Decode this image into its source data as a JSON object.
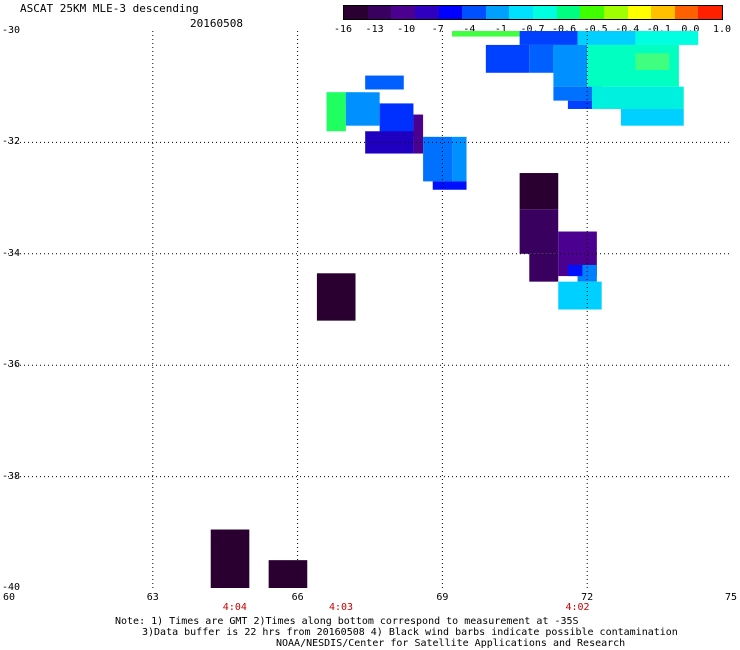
{
  "header": {
    "title": "ASCAT 25KM MLE-3 descending",
    "date": "20160508"
  },
  "colorbar": {
    "colors": [
      "#2a0030",
      "#3a0060",
      "#4b0090",
      "#3000c0",
      "#0000ff",
      "#0050ff",
      "#00a0ff",
      "#00e0ff",
      "#00ffe0",
      "#00ff80",
      "#40ff00",
      "#a0ff00",
      "#ffff00",
      "#ffc000",
      "#ff6000",
      "#ff2000"
    ],
    "labels": [
      "-16",
      "-13",
      "-10",
      "-7",
      "-4",
      "-1",
      "-0.7",
      "-0.6",
      "-0.5",
      "-0.4",
      "-0.1",
      "0.0",
      "1.0"
    ]
  },
  "axes": {
    "lat_labels": [
      "-30",
      "-32",
      "-34",
      "-36",
      "-38",
      "-40"
    ],
    "lon_labels": [
      "60",
      "63",
      "66",
      "69",
      "72",
      "75"
    ],
    "time_labels": [
      "4:04",
      "4:03",
      "4:02"
    ]
  },
  "notes": [
    "Note: 1) Times are GMT 2)Times along bottom correspond to measurement at -35S",
    "3)Data buffer is 22 hrs from 20160508 4) Black wind barbs indicate possible contamination",
    "NOAA/NESDIS/Center for Satellite Applications and Research"
  ],
  "map_data": {
    "lon_range": [
      60,
      75
    ],
    "lat_range": [
      -40,
      -30
    ],
    "gridlines": {
      "lon": [
        63,
        66,
        69,
        72
      ],
      "lat": [
        -32,
        -34,
        -36,
        -38
      ]
    },
    "time_label_lons": [
      64.7,
      66.9,
      71.8
    ],
    "cells": [
      {
        "lon": [
          69.2,
          70.6
        ],
        "lat": [
          -30.1,
          -30.0
        ],
        "color": "#40ff40"
      },
      {
        "lon": [
          70.6,
          71.8
        ],
        "lat": [
          -30.25,
          -30.0
        ],
        "color": "#0040ff"
      },
      {
        "lon": [
          71.8,
          73.0
        ],
        "lat": [
          -30.25,
          -30.0
        ],
        "color": "#00d0ff"
      },
      {
        "lon": [
          73.0,
          74.3
        ],
        "lat": [
          -30.25,
          -30.0
        ],
        "color": "#00ffe0"
      },
      {
        "lon": [
          69.9,
          70.8
        ],
        "lat": [
          -30.75,
          -30.25
        ],
        "color": "#0040ff"
      },
      {
        "lon": [
          70.8,
          71.3
        ],
        "lat": [
          -30.75,
          -30.25
        ],
        "color": "#0060ff"
      },
      {
        "lon": [
          71.3,
          72.0
        ],
        "lat": [
          -31.0,
          -30.25
        ],
        "color": "#0090ff"
      },
      {
        "lon": [
          72.0,
          73.9
        ],
        "lat": [
          -31.0,
          -30.25
        ],
        "color": "#00ffc0"
      },
      {
        "lon": [
          73.0,
          73.7
        ],
        "lat": [
          -30.7,
          -30.4
        ],
        "color": "#40ff80"
      },
      {
        "lon": [
          71.3,
          72.3
        ],
        "lat": [
          -31.25,
          -31.0
        ],
        "color": "#0070ff"
      },
      {
        "lon": [
          71.6,
          72.1
        ],
        "lat": [
          -31.4,
          -31.25
        ],
        "color": "#0040ff"
      },
      {
        "lon": [
          72.1,
          74.0
        ],
        "lat": [
          -31.4,
          -31.0
        ],
        "color": "#00f0e0"
      },
      {
        "lon": [
          72.7,
          74.0
        ],
        "lat": [
          -31.7,
          -31.4
        ],
        "color": "#00d0ff"
      },
      {
        "lon": [
          67.4,
          68.2
        ],
        "lat": [
          -31.05,
          -30.8
        ],
        "color": "#0060ff"
      },
      {
        "lon": [
          66.6,
          67.4
        ],
        "lat": [
          -31.3,
          -31.1
        ],
        "color": "#00ffe0"
      },
      {
        "lon": [
          66.6,
          67.0
        ],
        "lat": [
          -31.8,
          -31.1
        ],
        "color": "#20ff60"
      },
      {
        "lon": [
          67.0,
          67.7
        ],
        "lat": [
          -31.7,
          -31.1
        ],
        "color": "#0090ff"
      },
      {
        "lon": [
          67.7,
          68.4
        ],
        "lat": [
          -31.9,
          -31.3
        ],
        "color": "#0030ff"
      },
      {
        "lon": [
          67.4,
          68.4
        ],
        "lat": [
          -32.2,
          -31.8
        ],
        "color": "#2000c0"
      },
      {
        "lon": [
          68.4,
          68.6
        ],
        "lat": [
          -32.2,
          -31.5
        ],
        "color": "#4b0090"
      },
      {
        "lon": [
          68.6,
          69.2
        ],
        "lat": [
          -32.7,
          -31.9
        ],
        "color": "#0070ff"
      },
      {
        "lon": [
          69.2,
          69.5
        ],
        "lat": [
          -32.7,
          -31.9
        ],
        "color": "#0090ff"
      },
      {
        "lon": [
          68.8,
          69.5
        ],
        "lat": [
          -32.85,
          -32.7
        ],
        "color": "#0010ff"
      },
      {
        "lon": [
          70.6,
          71.4
        ],
        "lat": [
          -33.2,
          -32.55
        ],
        "color": "#2a0030"
      },
      {
        "lon": [
          70.6,
          71.4
        ],
        "lat": [
          -34.0,
          -33.2
        ],
        "color": "#3a0060"
      },
      {
        "lon": [
          71.4,
          72.2
        ],
        "lat": [
          -34.4,
          -33.6
        ],
        "color": "#4b0090"
      },
      {
        "lon": [
          70.8,
          71.4
        ],
        "lat": [
          -34.5,
          -34.0
        ],
        "color": "#3a0060"
      },
      {
        "lon": [
          71.8,
          72.2
        ],
        "lat": [
          -34.5,
          -34.2
        ],
        "color": "#0080ff"
      },
      {
        "lon": [
          71.4,
          72.3
        ],
        "lat": [
          -35.0,
          -34.5
        ],
        "color": "#00d0ff"
      },
      {
        "lon": [
          71.6,
          71.9
        ],
        "lat": [
          -34.4,
          -34.2
        ],
        "color": "#0010ff"
      },
      {
        "lon": [
          66.4,
          67.2
        ],
        "lat": [
          -35.2,
          -34.35
        ],
        "color": "#2a0030"
      },
      {
        "lon": [
          64.2,
          65.0
        ],
        "lat": [
          -40.0,
          -38.95
        ],
        "color": "#2a0030"
      },
      {
        "lon": [
          65.4,
          66.2
        ],
        "lat": [
          -40.0,
          -39.5
        ],
        "color": "#2a0030"
      }
    ]
  }
}
